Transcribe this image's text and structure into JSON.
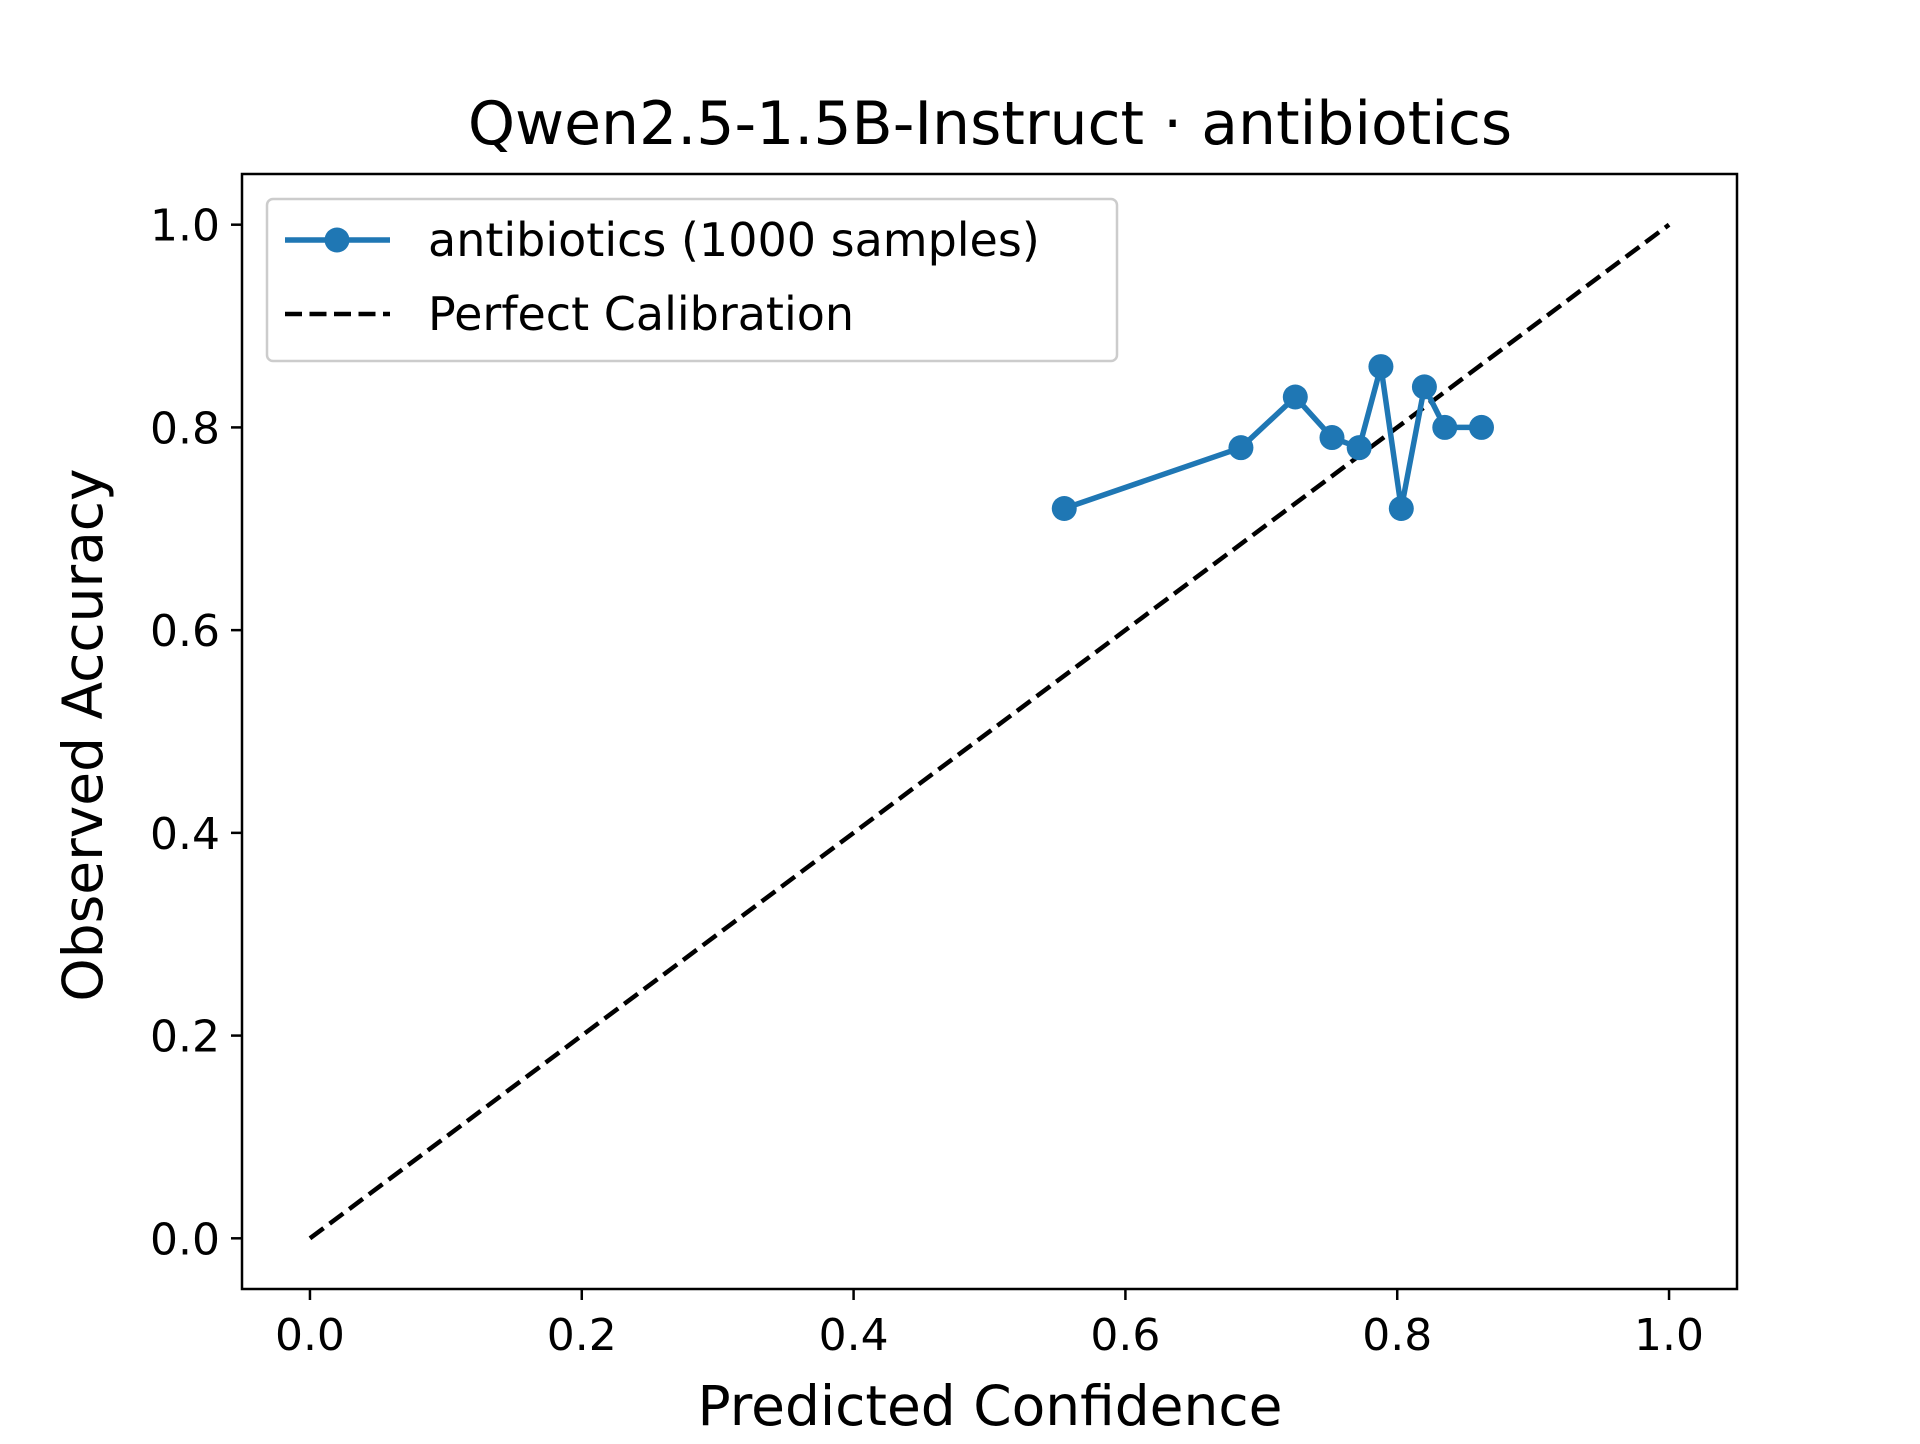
{
  "chart_data": {
    "type": "line",
    "title": "Qwen2.5-1.5B-Instruct · antibiotics",
    "xlabel": "Predicted Confidence",
    "ylabel": "Observed Accuracy",
    "xlim": [
      -0.05,
      1.05
    ],
    "ylim": [
      -0.05,
      1.05
    ],
    "xticks": [
      0.0,
      0.2,
      0.4,
      0.6,
      0.8,
      1.0
    ],
    "yticks": [
      0.0,
      0.2,
      0.4,
      0.6,
      0.8,
      1.0
    ],
    "xtick_labels": [
      "0.0",
      "0.2",
      "0.4",
      "0.6",
      "0.8",
      "1.0"
    ],
    "ytick_labels": [
      "0.0",
      "0.2",
      "0.4",
      "0.6",
      "0.8",
      "1.0"
    ],
    "grid": false,
    "legend_position": "top-left",
    "series": [
      {
        "name": "antibiotics (1000 samples)",
        "style": "solid-with-markers",
        "color": "#1f77b4",
        "x": [
          0.555,
          0.685,
          0.725,
          0.752,
          0.772,
          0.788,
          0.803,
          0.82,
          0.835,
          0.862
        ],
        "y": [
          0.72,
          0.78,
          0.83,
          0.79,
          0.78,
          0.86,
          0.72,
          0.84,
          0.8,
          0.8
        ]
      },
      {
        "name": "Perfect Calibration",
        "style": "dashed",
        "color": "#000000",
        "x": [
          0.0,
          1.0
        ],
        "y": [
          0.0,
          1.0
        ]
      }
    ]
  }
}
